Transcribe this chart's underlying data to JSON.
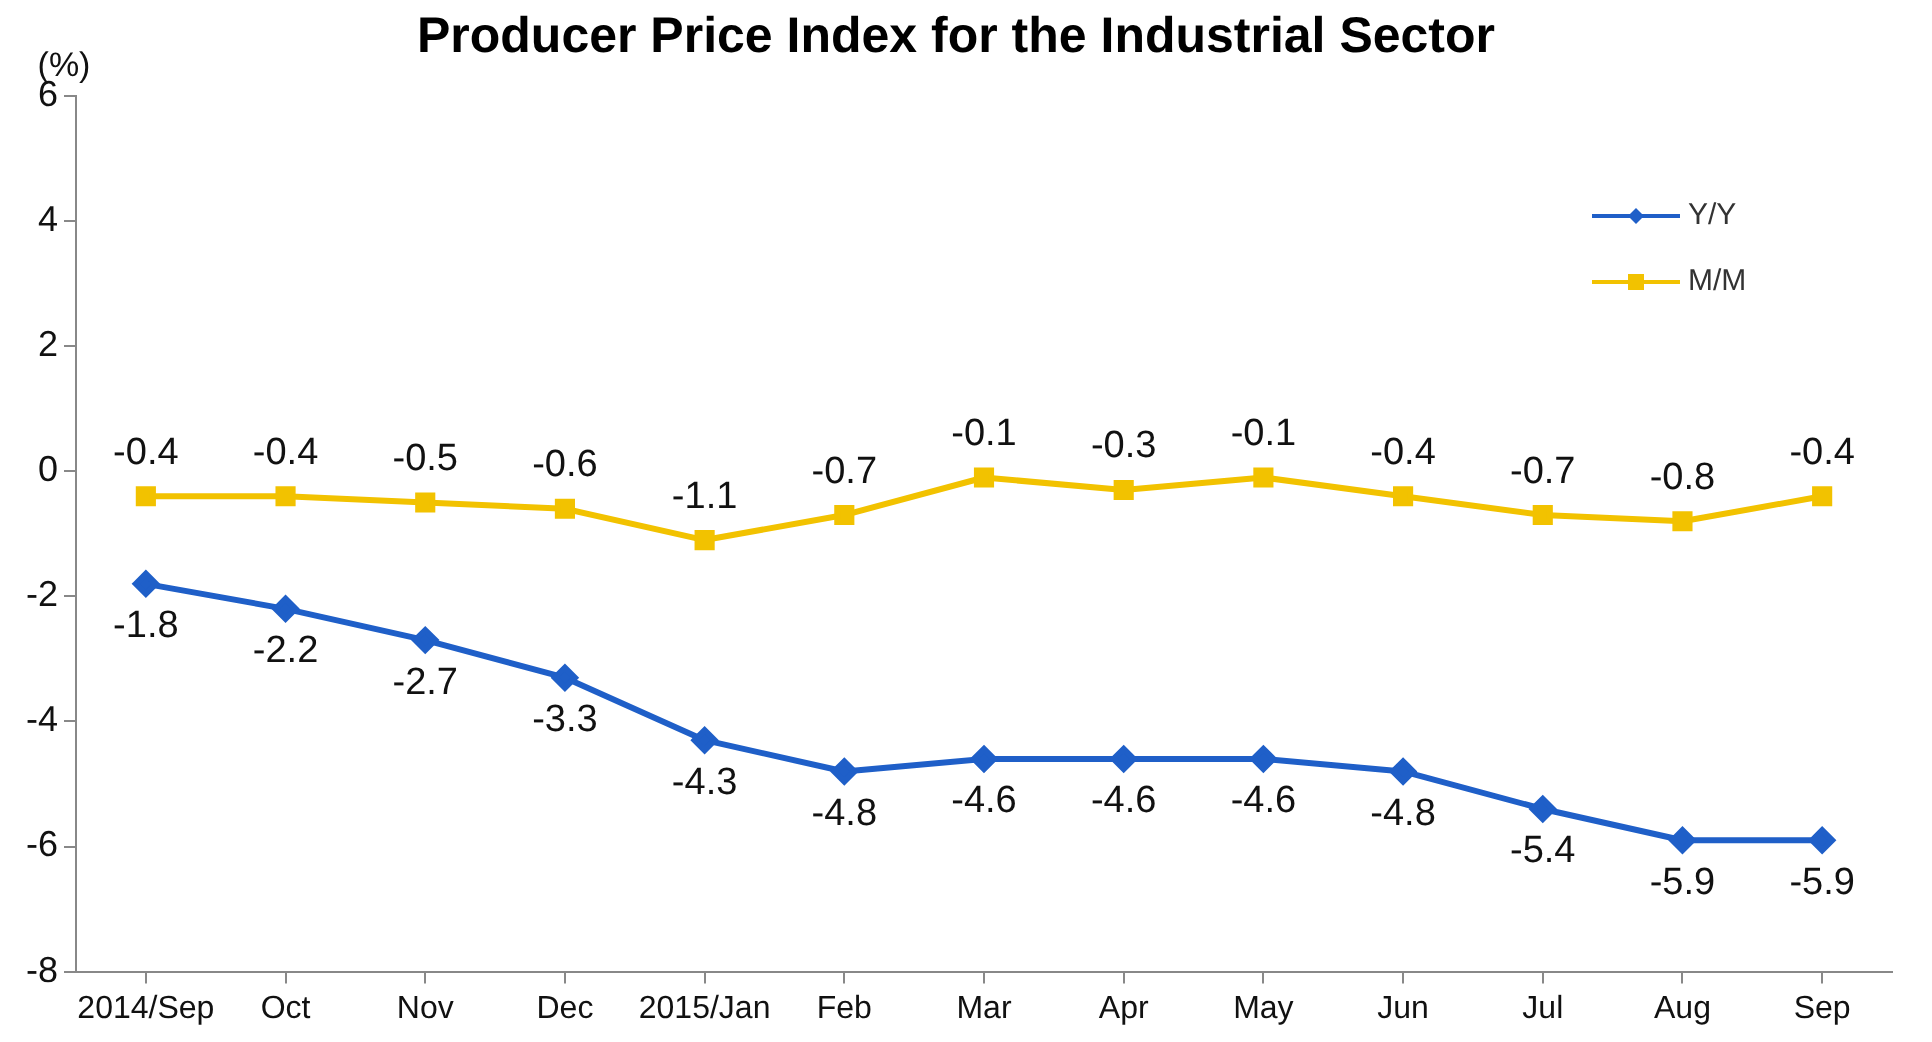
{
  "chart_data": {
    "type": "line",
    "title": "Producer Price Index for the Industrial Sector",
    "ylabel": "(%)",
    "categories": [
      "2014/Sep",
      "Oct",
      "Nov",
      "Dec",
      "2015/Jan",
      "Feb",
      "Mar",
      "Apr",
      "May",
      "Jun",
      "Jul",
      "Aug",
      "Sep"
    ],
    "series": [
      {
        "name": "Y/Y",
        "color": "#1f5fc8",
        "marker": "diamond",
        "values": [
          -1.8,
          -2.2,
          -2.7,
          -3.3,
          -4.3,
          -4.8,
          -4.6,
          -4.6,
          -4.6,
          -4.8,
          -5.4,
          -5.9,
          -5.9
        ]
      },
      {
        "name": "M/M",
        "color": "#f2c200",
        "marker": "square",
        "values": [
          -0.4,
          -0.4,
          -0.5,
          -0.6,
          -1.1,
          -0.7,
          -0.1,
          -0.3,
          -0.1,
          -0.4,
          -0.7,
          -0.8,
          -0.4
        ]
      }
    ],
    "ylim": [
      -8,
      6
    ],
    "yticks": [
      -8,
      -6,
      -4,
      -2,
      0,
      2,
      4,
      6
    ],
    "grid": false,
    "legend": "top right",
    "data_labels": true,
    "line_style": "solid"
  }
}
